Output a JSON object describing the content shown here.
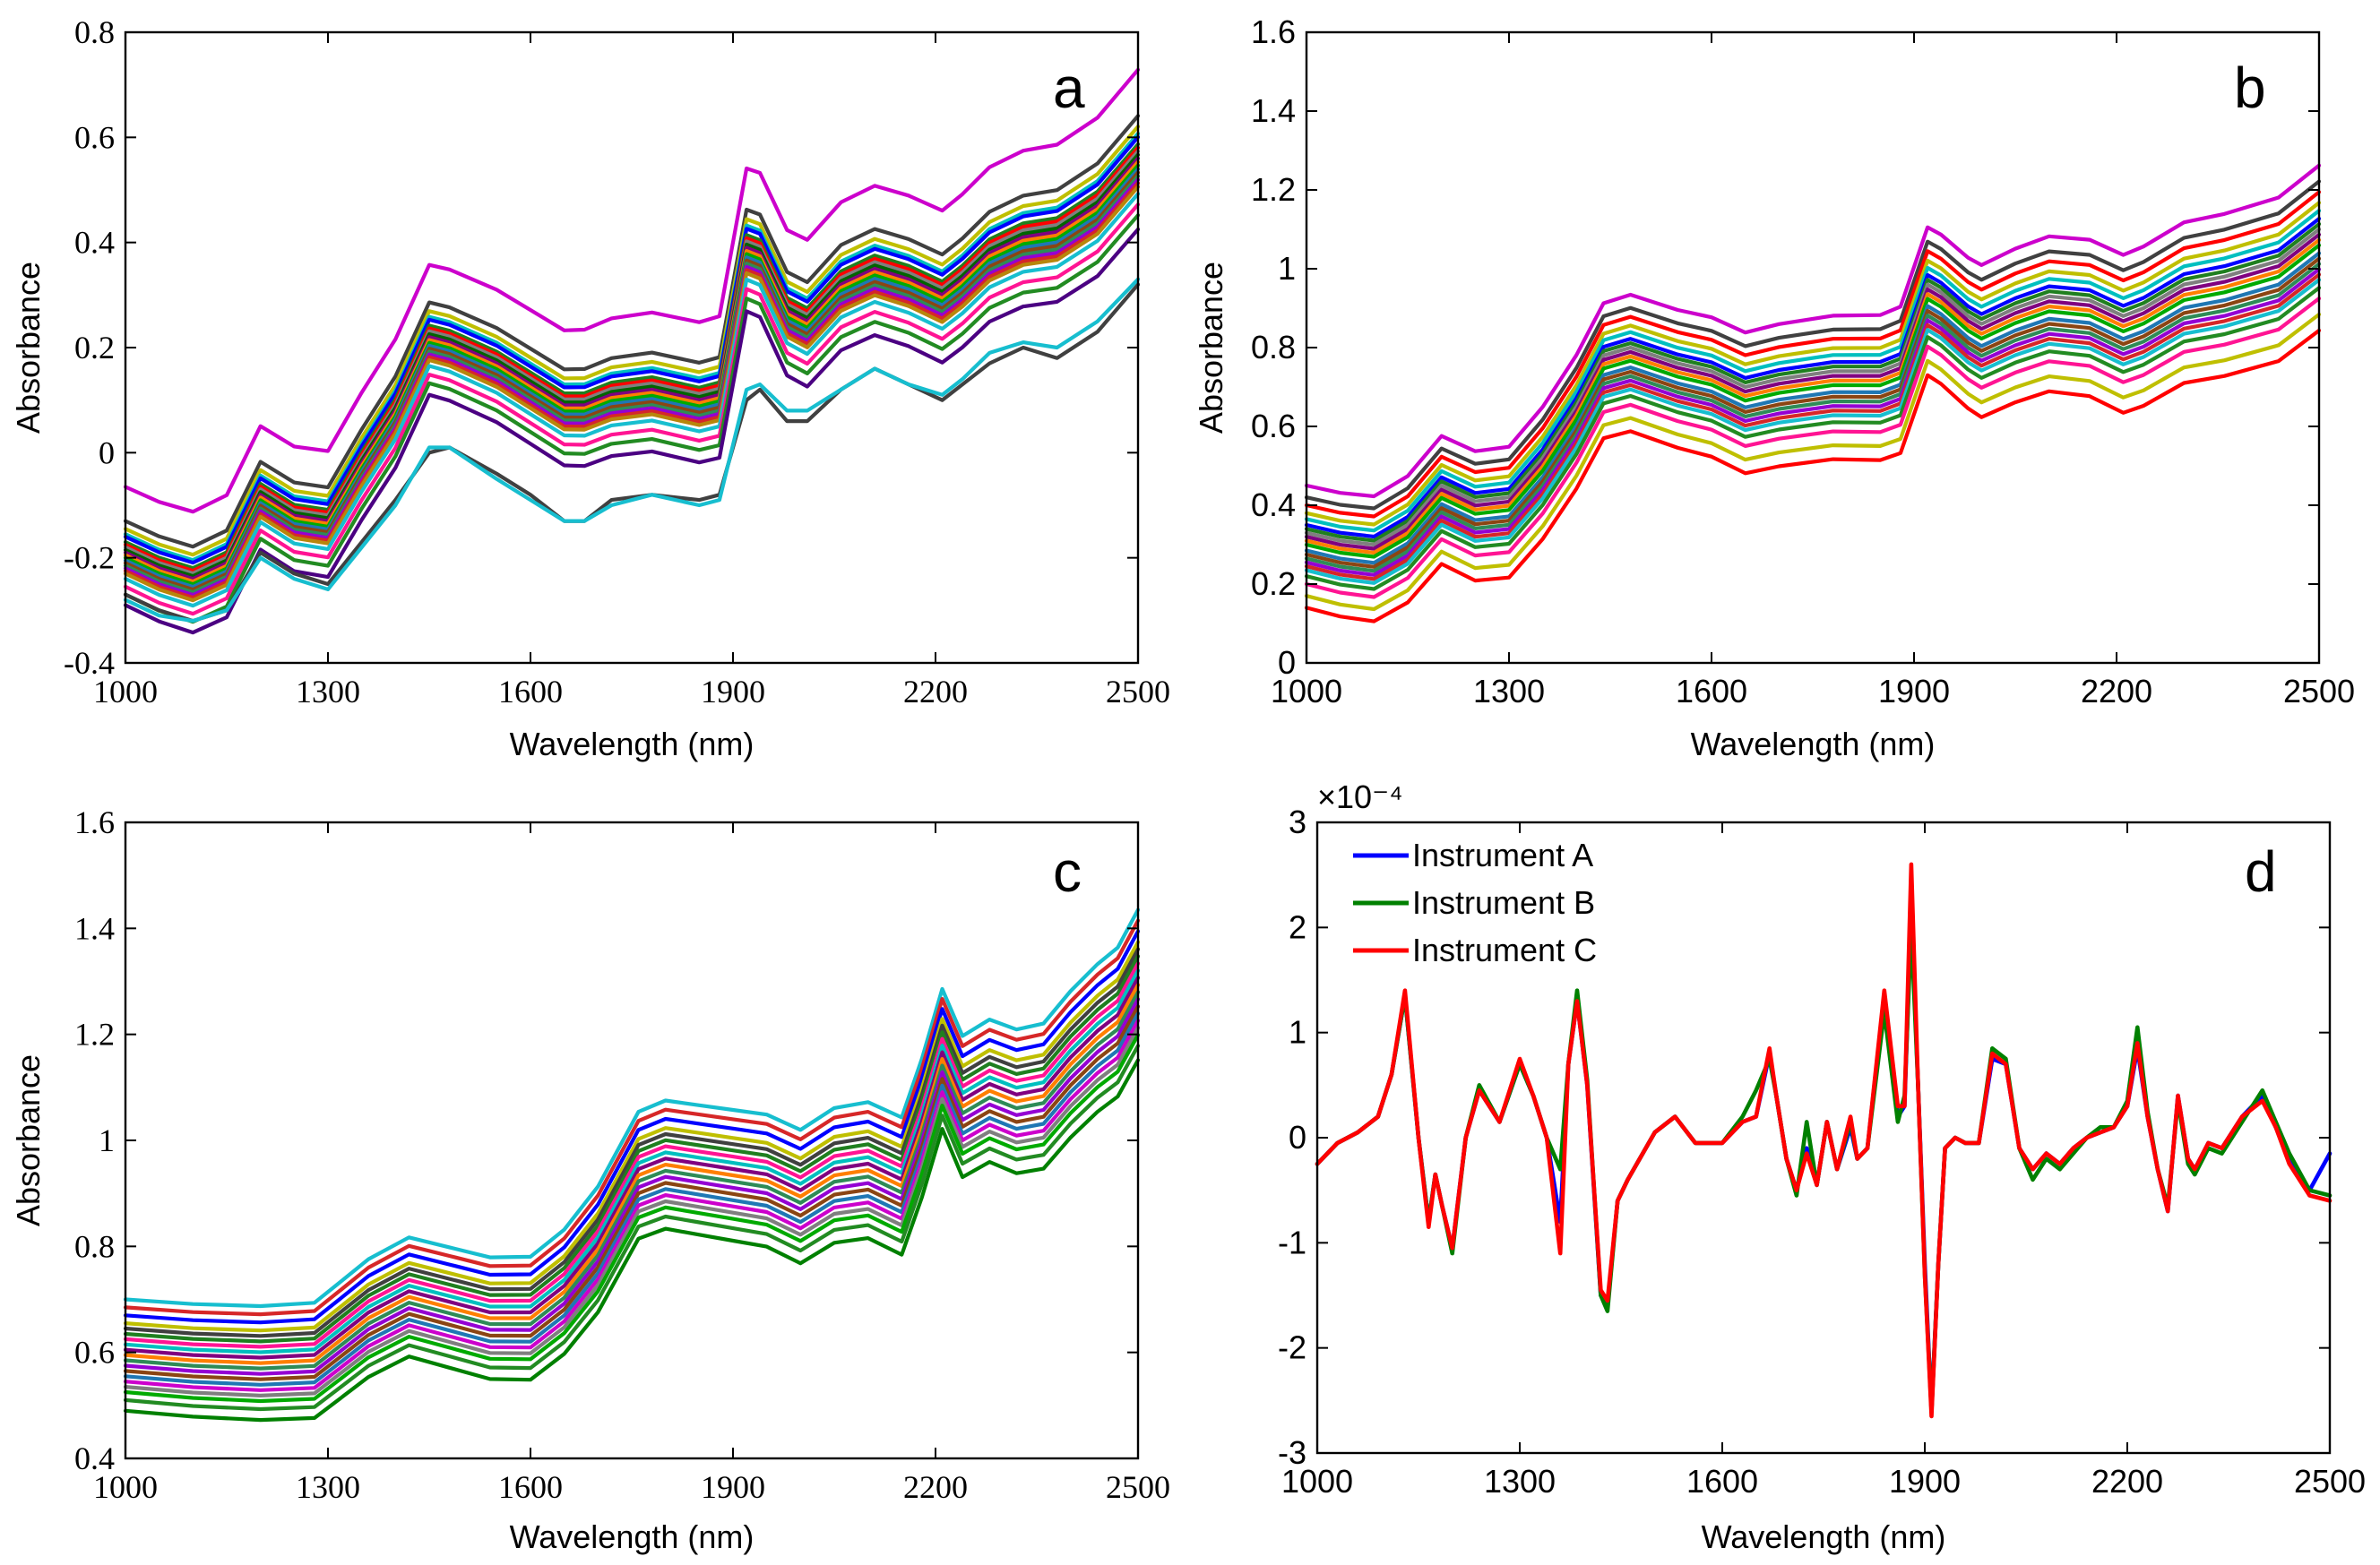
{
  "chart_data": [
    {
      "type": "line",
      "panel": "a",
      "title": "",
      "xlabel": "Wavelength (nm)",
      "ylabel": "Absorbance",
      "xlim": [
        1000,
        2500
      ],
      "ylim": [
        -0.4,
        0.8
      ],
      "xticks": [
        1000,
        1300,
        1600,
        1900,
        2200,
        2500
      ],
      "xtick_labels": [
        "1000",
        "1300",
        "1600",
        "1900",
        "2200",
        "2500"
      ],
      "yticks": [
        -0.4,
        -0.2,
        0,
        0.2,
        0.4,
        0.6,
        0.8
      ],
      "ytick_labels": [
        "-0.4",
        "-0.2",
        "0",
        "0.2",
        "0.4",
        "0.6",
        "0.8"
      ],
      "tick_font": "serif",
      "grid": false,
      "x": [
        1000,
        1050,
        1100,
        1150,
        1200,
        1250,
        1300,
        1350,
        1400,
        1450,
        1480,
        1550,
        1600,
        1650,
        1680,
        1720,
        1780,
        1850,
        1880,
        1920,
        1940,
        1980,
        2010,
        2060,
        2110,
        2160,
        2210,
        2240,
        2280,
        2330,
        2380,
        2440,
        2500
      ],
      "profile": [
        -0.19,
        -0.22,
        -0.24,
        -0.21,
        -0.08,
        -0.12,
        -0.13,
        -0.02,
        0.08,
        0.22,
        0.21,
        0.17,
        0.13,
        0.09,
        0.09,
        0.11,
        0.12,
        0.1,
        0.11,
        0.39,
        0.38,
        0.27,
        0.25,
        0.32,
        0.35,
        0.33,
        0.3,
        0.33,
        0.38,
        0.41,
        0.42,
        0.47,
        0.56
      ],
      "series_offsets": [
        0.125,
        0.06,
        0.045,
        0.035,
        0.03,
        0.02,
        0.015,
        0.01,
        0.005,
        0.0,
        -0.005,
        -0.01,
        -0.015,
        -0.02,
        -0.025,
        -0.03,
        -0.035,
        -0.04,
        -0.05,
        -0.065,
        -0.08,
        -0.1
      ],
      "outliers": [
        {
          "y": [
            -0.27,
            -0.3,
            -0.32,
            -0.3,
            -0.19,
            -0.23,
            -0.25,
            -0.17,
            -0.09,
            0.0,
            0.01,
            -0.04,
            -0.08,
            -0.13,
            -0.13,
            -0.09,
            -0.08,
            -0.09,
            -0.08,
            0.1,
            0.12,
            0.06,
            0.06,
            0.12,
            0.16,
            0.13,
            0.1,
            0.13,
            0.17,
            0.2,
            0.18,
            0.23,
            0.32
          ],
          "color": "#404040"
        },
        {
          "y": [
            -0.28,
            -0.31,
            -0.32,
            -0.3,
            -0.2,
            -0.24,
            -0.26,
            -0.18,
            -0.1,
            0.01,
            0.01,
            -0.05,
            -0.09,
            -0.13,
            -0.13,
            -0.1,
            -0.08,
            -0.1,
            -0.09,
            0.12,
            0.13,
            0.08,
            0.08,
            0.12,
            0.16,
            0.13,
            0.11,
            0.14,
            0.19,
            0.21,
            0.2,
            0.25,
            0.33
          ],
          "color": "#17BECF"
        }
      ],
      "colors": [
        "#CC00CC",
        "#404040",
        "#BFBF00",
        "#00BFBF",
        "#0000FF",
        "#1F7F1F",
        "#FF0000",
        "#7F7F7F",
        "#006400",
        "#800080",
        "#FF7F00",
        "#00AA00",
        "#1F77B4",
        "#8B4513",
        "#2E8B57",
        "#9400D3",
        "#D62728",
        "#B8860B",
        "#17BECF",
        "#FF1493",
        "#228B22",
        "#4B0082"
      ]
    },
    {
      "type": "line",
      "panel": "b",
      "title": "",
      "xlabel": "Wavelength (nm)",
      "ylabel": "Absorbance",
      "xlim": [
        1000,
        2500
      ],
      "ylim": [
        0,
        1.6
      ],
      "xticks": [
        1000,
        1300,
        1600,
        1900,
        2200,
        2500
      ],
      "xtick_labels": [
        "1000",
        "1300",
        "1600",
        "1900",
        "2200",
        "2500"
      ],
      "yticks": [
        0,
        0.2,
        0.4,
        0.6,
        0.8,
        1,
        1.2,
        1.4,
        1.6
      ],
      "ytick_labels": [
        "0",
        "0.2",
        "0.4",
        "0.6",
        "0.8",
        "1",
        "1.2",
        "1.4",
        "1.6"
      ],
      "tick_font": "sans",
      "grid": false,
      "x": [
        1000,
        1050,
        1100,
        1150,
        1200,
        1250,
        1300,
        1350,
        1400,
        1440,
        1480,
        1550,
        1600,
        1650,
        1700,
        1780,
        1850,
        1880,
        1920,
        1940,
        1980,
        2000,
        2050,
        2100,
        2160,
        2210,
        2240,
        2300,
        2360,
        2440,
        2500
      ],
      "profile": [
        0.33,
        0.31,
        0.3,
        0.35,
        0.45,
        0.41,
        0.42,
        0.52,
        0.65,
        0.78,
        0.8,
        0.76,
        0.74,
        0.7,
        0.72,
        0.74,
        0.74,
        0.76,
        0.96,
        0.94,
        0.88,
        0.86,
        0.9,
        0.93,
        0.92,
        0.88,
        0.9,
        0.96,
        0.98,
        1.02,
        1.1
      ],
      "series_offsets": [
        0.12,
        0.09,
        0.07,
        0.05,
        0.035,
        0.02,
        0.01,
        0.0,
        -0.01,
        -0.02,
        -0.03,
        -0.045,
        -0.055,
        -0.065,
        -0.075,
        -0.085,
        -0.095,
        -0.11,
        -0.13,
        -0.16,
        -0.19
      ],
      "colors": [
        "#CC00CC",
        "#404040",
        "#FF0000",
        "#BFBF00",
        "#00BFBF",
        "#0000FF",
        "#1F7F1F",
        "#7F7F7F",
        "#800080",
        "#FF7F00",
        "#00AA00",
        "#1F77B4",
        "#8B4513",
        "#2E8B57",
        "#9400D3",
        "#D62728",
        "#17BECF",
        "#228B22",
        "#FF1493",
        "#BFBF00",
        "#FF0000"
      ]
    },
    {
      "type": "line",
      "panel": "c",
      "title": "",
      "xlabel": "Wavelength (nm)",
      "ylabel": "Absorbance",
      "xlim": [
        1000,
        2500
      ],
      "ylim": [
        0.4,
        1.6
      ],
      "xticks": [
        1000,
        1300,
        1600,
        1900,
        2200,
        2500
      ],
      "xtick_labels": [
        "1000",
        "1300",
        "1600",
        "1900",
        "2200",
        "2500"
      ],
      "yticks": [
        0.4,
        0.6,
        0.8,
        1,
        1.2,
        1.4,
        1.6
      ],
      "ytick_labels": [
        "0.4",
        "0.6",
        "0.8",
        "1",
        "1.2",
        "1.4",
        "1.6"
      ],
      "tick_font": "serif",
      "grid": false,
      "x": [
        1000,
        1100,
        1200,
        1280,
        1320,
        1360,
        1420,
        1480,
        1540,
        1600,
        1650,
        1700,
        1760,
        1800,
        1850,
        1900,
        1950,
        2000,
        2050,
        2100,
        2150,
        2180,
        2210,
        2240,
        2280,
        2320,
        2360,
        2400,
        2440,
        2470,
        2500
      ],
      "profile": [
        0.6,
        0.59,
        0.585,
        0.59,
        0.63,
        0.67,
        0.71,
        0.69,
        0.67,
        0.67,
        0.72,
        0.8,
        0.94,
        0.96,
        0.95,
        0.94,
        0.93,
        0.9,
        0.94,
        0.95,
        0.92,
        1.03,
        1.16,
        1.07,
        1.1,
        1.08,
        1.09,
        1.15,
        1.2,
        1.23,
        1.3
      ],
      "series_offsets": [
        0.1,
        0.085,
        0.07,
        0.055,
        0.045,
        0.035,
        0.025,
        0.015,
        0.005,
        -0.005,
        -0.015,
        -0.025,
        -0.035,
        -0.045,
        -0.055,
        -0.065,
        -0.075,
        -0.09,
        -0.11
      ],
      "colors": [
        "#17BECF",
        "#D62728",
        "#0000FF",
        "#BFBF00",
        "#404040",
        "#1F7F1F",
        "#FF1493",
        "#00BFBF",
        "#800080",
        "#FF7F00",
        "#2E8B57",
        "#9400D3",
        "#8B4513",
        "#1F77B4",
        "#CC00CC",
        "#7F7F7F",
        "#00AA00",
        "#228B22",
        "#008000"
      ]
    },
    {
      "type": "line",
      "panel": "d",
      "title": "",
      "xlabel": "Wavelength (nm)",
      "ylabel": "",
      "multiplier_label": "×10⁻⁴",
      "xlim": [
        1000,
        2500
      ],
      "ylim": [
        -3,
        3
      ],
      "xticks": [
        1000,
        1300,
        1600,
        1900,
        2200,
        2500
      ],
      "xtick_labels": [
        "1000",
        "1300",
        "1600",
        "1900",
        "2200",
        "2500"
      ],
      "yticks": [
        -3,
        -2,
        -1,
        0,
        1,
        2,
        3
      ],
      "ytick_labels": [
        "-3",
        "-2",
        "-1",
        "0",
        "1",
        "2",
        "3"
      ],
      "tick_font": "sans",
      "grid": false,
      "legend_position": "top-left",
      "x": [
        1000,
        1030,
        1060,
        1090,
        1110,
        1130,
        1150,
        1165,
        1175,
        1185,
        1200,
        1220,
        1240,
        1270,
        1300,
        1320,
        1340,
        1360,
        1372,
        1385,
        1400,
        1420,
        1430,
        1445,
        1460,
        1500,
        1530,
        1560,
        1600,
        1630,
        1650,
        1670,
        1680,
        1695,
        1710,
        1725,
        1740,
        1755,
        1770,
        1790,
        1800,
        1815,
        1840,
        1860,
        1870,
        1880,
        1890,
        1900,
        1910,
        1920,
        1930,
        1945,
        1960,
        1980,
        2000,
        2020,
        2040,
        2060,
        2080,
        2100,
        2120,
        2140,
        2160,
        2180,
        2200,
        2215,
        2230,
        2245,
        2260,
        2275,
        2290,
        2300,
        2320,
        2340,
        2370,
        2400,
        2420,
        2440,
        2470,
        2500
      ],
      "series": [
        {
          "name": "Instrument A",
          "color": "#0000FF",
          "values": [
            -0.25,
            -0.05,
            0.05,
            0.2,
            0.6,
            1.35,
            0.0,
            -0.8,
            -0.35,
            -0.65,
            -1.05,
            0.0,
            0.45,
            0.15,
            0.7,
            0.4,
            0.0,
            -0.8,
            0.7,
            1.3,
            0.5,
            -1.5,
            -1.6,
            -0.6,
            -0.4,
            0.05,
            0.2,
            -0.05,
            -0.05,
            0.15,
            0.2,
            0.8,
            0.4,
            -0.2,
            -0.5,
            -0.1,
            -0.45,
            0.15,
            -0.3,
            0.1,
            -0.2,
            -0.1,
            1.35,
            0.2,
            0.3,
            2.2,
            0.5,
            -1.2,
            -2.6,
            -1.2,
            -0.1,
            0.0,
            -0.05,
            -0.05,
            0.75,
            0.7,
            -0.1,
            -0.3,
            -0.15,
            -0.25,
            -0.1,
            0.0,
            0.05,
            0.1,
            0.3,
            0.85,
            0.2,
            -0.3,
            -0.7,
            0.4,
            -0.2,
            -0.3,
            -0.05,
            -0.1,
            0.2,
            0.4,
            0.1,
            -0.2,
            -0.5,
            -0.15
          ]
        },
        {
          "name": "Instrument B",
          "color": "#008000",
          "values": [
            -0.25,
            -0.05,
            0.05,
            0.2,
            0.6,
            1.35,
            0.0,
            -0.8,
            -0.35,
            -0.65,
            -1.1,
            0.0,
            0.5,
            0.15,
            0.7,
            0.4,
            0.0,
            -0.3,
            0.7,
            1.4,
            0.55,
            -1.5,
            -1.65,
            -0.6,
            -0.4,
            0.05,
            0.2,
            -0.05,
            -0.05,
            0.2,
            0.45,
            0.75,
            0.4,
            -0.2,
            -0.55,
            0.15,
            -0.45,
            0.15,
            -0.3,
            0.15,
            -0.2,
            -0.1,
            1.2,
            0.15,
            0.4,
            2.0,
            0.5,
            -1.3,
            -2.6,
            -1.2,
            -0.1,
            0.0,
            -0.05,
            -0.05,
            0.85,
            0.75,
            -0.1,
            -0.4,
            -0.2,
            -0.3,
            -0.15,
            0.0,
            0.1,
            0.1,
            0.35,
            1.05,
            0.25,
            -0.3,
            -0.65,
            0.35,
            -0.25,
            -0.35,
            -0.1,
            -0.15,
            0.15,
            0.45,
            0.15,
            -0.15,
            -0.5,
            -0.55
          ]
        },
        {
          "name": "Instrument C",
          "color": "#FF0000",
          "values": [
            -0.25,
            -0.05,
            0.05,
            0.2,
            0.6,
            1.4,
            0.0,
            -0.85,
            -0.35,
            -0.65,
            -1.05,
            0.0,
            0.45,
            0.15,
            0.75,
            0.4,
            0.0,
            -1.1,
            0.7,
            1.3,
            0.5,
            -1.45,
            -1.55,
            -0.6,
            -0.4,
            0.05,
            0.2,
            -0.05,
            -0.05,
            0.15,
            0.2,
            0.85,
            0.4,
            -0.2,
            -0.5,
            -0.15,
            -0.45,
            0.15,
            -0.3,
            0.2,
            -0.2,
            -0.1,
            1.4,
            0.3,
            0.3,
            2.6,
            0.5,
            -1.3,
            -2.65,
            -1.2,
            -0.1,
            0.0,
            -0.05,
            -0.05,
            0.8,
            0.7,
            -0.1,
            -0.3,
            -0.15,
            -0.25,
            -0.1,
            0.0,
            0.05,
            0.1,
            0.3,
            0.9,
            0.2,
            -0.3,
            -0.7,
            0.4,
            -0.2,
            -0.3,
            -0.05,
            -0.1,
            0.2,
            0.35,
            0.1,
            -0.25,
            -0.55,
            -0.6
          ]
        }
      ]
    }
  ]
}
